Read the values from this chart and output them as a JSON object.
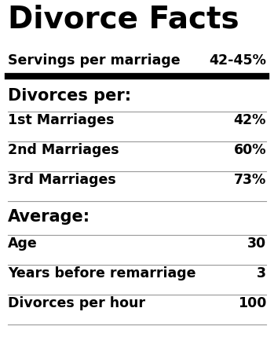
{
  "title": "Divorce Facts",
  "subtitle_label": "Servings per marriage",
  "subtitle_value": "42-45%",
  "section1_header": "Divorces per:",
  "section1_rows": [
    {
      "label": "1st Marriages",
      "value": "42%"
    },
    {
      "label": "2nd Marriages",
      "value": "60%"
    },
    {
      "label": "3rd Marriages",
      "value": "73%"
    }
  ],
  "section2_header": "Average:",
  "section2_rows": [
    {
      "label": "Age",
      "value": "30"
    },
    {
      "label": "Years before remarriage",
      "value": "3"
    },
    {
      "label": "Divorces per hour",
      "value": "100"
    }
  ],
  "bg_color": "#ffffff",
  "text_color": "#000000",
  "title_fontsize": 28,
  "subtitle_fontsize": 12.5,
  "section_header_fontsize": 15,
  "row_fontsize": 12.5,
  "fig_width": 3.49,
  "fig_height": 4.35,
  "dpi": 100
}
